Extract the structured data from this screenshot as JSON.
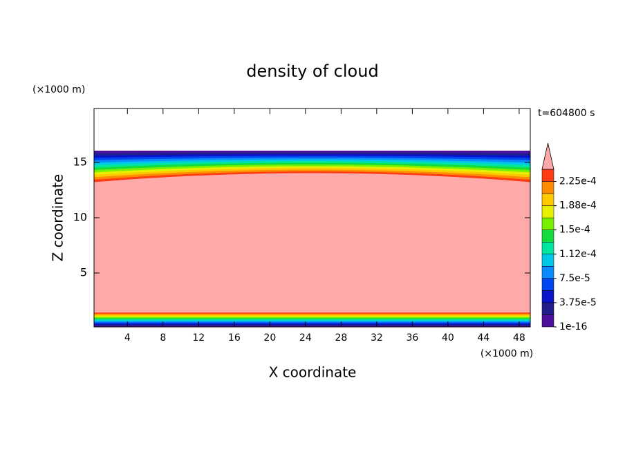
{
  "chart_data": {
    "type": "contour",
    "title": "density of cloud",
    "x_label": "X coordinate",
    "y_label": "Z coordinate",
    "x_unit": "(×1000 m)",
    "y_unit": "(×1000 m)",
    "time_label": "t=604800 s",
    "xlim": [
      0.25,
      49.25
    ],
    "xticks": [
      4,
      8,
      12,
      16,
      20,
      24,
      28,
      32,
      36,
      40,
      44,
      48
    ],
    "ylim": [
      0.125,
      19.875
    ],
    "yticks": [
      5,
      10,
      15
    ],
    "colorbar": {
      "levels": [
        1e-16,
        1.875e-05,
        3.75e-05,
        5.625e-05,
        7.5e-05,
        9.375e-05,
        0.0001125,
        0.00013125,
        0.00015,
        0.00016875,
        0.0001875,
        0.00020625,
        0.000225,
        0.00024375
      ],
      "colors": [
        "#4d0f9e",
        "#221e8c",
        "#0a14c8",
        "#0046f0",
        "#0a8cff",
        "#00c8e6",
        "#00e6a0",
        "#14dc3c",
        "#78f000",
        "#e6f000",
        "#ffc800",
        "#ff8c00",
        "#ff3c14"
      ],
      "overflow_color": "#ffaaaa",
      "ticks": [
        1e-16,
        {
          "value": 3.75e-05,
          "label": "3.75e-5"
        },
        {
          "value": 7.5e-05,
          "label": "7.5e-5"
        },
        {
          "value": 0.0001125,
          "label": "1.12e-4"
        },
        {
          "value": 0.00015,
          "label": "1.5e-4"
        },
        {
          "value": 0.0001875,
          "label": "1.88e-4"
        },
        {
          "value": 0.000225,
          "label": "2.25e-4"
        }
      ]
    }
  }
}
